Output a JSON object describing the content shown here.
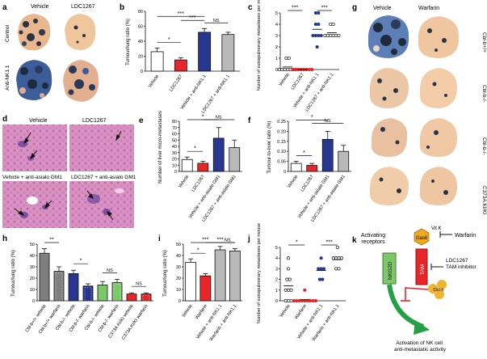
{
  "panels": {
    "a": {
      "letter": "a",
      "col_vehicle": "Vehicle",
      "col_ldc": "LDC1267",
      "row_control": "Control",
      "row_antink": "Anti-NK1.1"
    },
    "b": {
      "letter": "b",
      "ylabel": "Tumour/lung ratio (%)",
      "yticks": [
        "0",
        "20",
        "40",
        "60",
        "80"
      ],
      "xlabels": [
        "Vehicle",
        "LDC1267",
        "Vehicle + anti-NK1.1",
        "LDC1267 + anti-NK1.1"
      ],
      "sig": [
        "*",
        "***",
        "***",
        "NS"
      ]
    },
    "c": {
      "letter": "c",
      "ylabel": "Number of extrapulmonary metastases per mouse",
      "yticks": [
        "0",
        "1",
        "2",
        "3",
        "4",
        "5"
      ],
      "xlabels": [
        "Vehicle",
        "LDC1267",
        "Vehicle + anti-NK1.1",
        "LDC1267 + anti-NK1.1"
      ],
      "sig": [
        "***",
        "***"
      ]
    },
    "d": {
      "letter": "d",
      "labels": [
        "Vehicle",
        "LDC1267",
        "Vehicle + anti-asialo GM1",
        "LDC1267 + anti-asialo GM1"
      ]
    },
    "e": {
      "letter": "e",
      "ylabel": "Number of liver micro-metastases",
      "yticks": [
        "0",
        "10",
        "20",
        "30",
        "40",
        "50",
        "60",
        "70",
        "80"
      ],
      "xlabels": [
        "Vehicle",
        "LDC1267",
        "Vehicle + anti-asialo GM1",
        "LDC1267 + anti-asialo GM1"
      ],
      "sig": [
        "*",
        "*",
        "NS"
      ]
    },
    "f": {
      "letter": "f",
      "ylabel": "Tumour-to-liver ratio (%)",
      "yticks": [
        "0",
        "0.05",
        "0.10",
        "0.15",
        "0.20",
        "0.25"
      ],
      "xlabels": [
        "Vehicle",
        "LDC1267",
        "Vehicle + anti-asialo GM1",
        "LDC1267 + anti-asialo GM1"
      ],
      "sig": [
        "*",
        "*",
        "NS"
      ]
    },
    "g": {
      "letter": "g",
      "col_vehicle": "Vehicle",
      "col_warfarin": "Warfarin",
      "rows": [
        "Cbl-b+/+",
        "Cbl-b-/-",
        "Cbl-b-/-",
        "C373A KI/KI"
      ]
    },
    "h": {
      "letter": "h",
      "ylabel": "Tumour/lung ratio (%)",
      "yticks": [
        "0",
        "10",
        "20",
        "30",
        "40",
        "50"
      ],
      "xlabels": [
        "Cbl-b+/+ vehicle",
        "Cbl-b+/+ warfarin",
        "Cbl-b-/- vehicle",
        "Cbl-b-/- warfarin",
        "Cbl-b-/- vehicle",
        "Cbl-b-/- warfarin",
        "C373A KI/KI vehicle",
        "C373A KI/KI warfarin"
      ],
      "sig": [
        "**",
        "*",
        "NS",
        "NS"
      ]
    },
    "i": {
      "letter": "i",
      "ylabel": "Tumour/lung ratio (%)",
      "yticks": [
        "0",
        "10",
        "20",
        "30",
        "40",
        "50"
      ],
      "xlabels": [
        "Vehicle",
        "Warfarin",
        "Vehicle + anti-NK1.1",
        "Warfarin + anti-NK1.1"
      ],
      "sig": [
        "***",
        "***",
        "*",
        "NS"
      ]
    },
    "j": {
      "letter": "j",
      "ylabel": "Number of extrapulmonary metastases per mouse",
      "yticks": [
        "0",
        "1",
        "2",
        "3",
        "4",
        "5"
      ],
      "xlabels": [
        "Vehicle",
        "Warfarin",
        "Vehicle + anti-NK1.1",
        "Warfarin + anti-NK1.1"
      ],
      "sig": [
        "*",
        "***"
      ]
    },
    "k": {
      "letter": "k",
      "activating": "Activating receptors",
      "nkg2d": "NKG2D",
      "tam": "TAM",
      "gas6": "Gas6",
      "vitk": "Vit K",
      "warfarin": "Warfarin",
      "ldc": "LDC1267 TAM inhibitor",
      "cblb": "Cbl-b",
      "activation": "Activation of NK cell anti-metastatic activity"
    }
  },
  "colors": {
    "white": "#ffffff",
    "red": "#e8262a",
    "blue": "#27378f",
    "grey": "#b9b9b9",
    "darkgrey": "#7f7f7f",
    "green": "#79c86a",
    "orange": "#f0a81f"
  },
  "chart_data": [
    {
      "type": "bar",
      "panel": "b",
      "categories": [
        "Vehicle",
        "LDC1267",
        "Vehicle + anti-NK1.1",
        "LDC1267 + anti-NK1.1"
      ],
      "values": [
        26,
        15,
        52,
        49
      ],
      "errors": [
        5,
        3,
        5,
        3
      ],
      "ylim": [
        0,
        80
      ],
      "ylabel": "Tumour/lung ratio (%)"
    },
    {
      "type": "scatter",
      "panel": "c",
      "categories": [
        "Vehicle",
        "LDC1267",
        "Vehicle + anti-NK1.1",
        "LDC1267 + anti-NK1.1"
      ],
      "points": [
        [
          1,
          1,
          0,
          0,
          0,
          0,
          0,
          0,
          0
        ],
        [
          0,
          0,
          0,
          0,
          0,
          0,
          0,
          0
        ],
        [
          5,
          5,
          4,
          4,
          3,
          3,
          3,
          3,
          2
        ],
        [
          4,
          4,
          3,
          3,
          3,
          3,
          3,
          3
        ]
      ],
      "ylim": [
        0,
        5
      ],
      "ylabel": "Number of extrapulmonary metastases per mouse"
    },
    {
      "type": "bar",
      "panel": "e",
      "categories": [
        "Vehicle",
        "LDC1267",
        "Vehicle + anti-asialo GM1",
        "LDC1267 + anti-asialo GM1"
      ],
      "values": [
        19,
        13,
        53,
        38
      ],
      "errors": [
        4,
        3,
        17,
        12
      ],
      "ylim": [
        0,
        80
      ],
      "ylabel": "Number of liver micro-metastases"
    },
    {
      "type": "bar",
      "panel": "f",
      "categories": [
        "Vehicle",
        "LDC1267",
        "Vehicle + anti-asialo GM1",
        "LDC1267 + anti-asialo GM1"
      ],
      "values": [
        0.04,
        0.03,
        0.16,
        0.1
      ],
      "errors": [
        0.01,
        0.01,
        0.04,
        0.03
      ],
      "ylim": [
        0,
        0.25
      ],
      "ylabel": "Tumour-to-liver ratio (%)"
    },
    {
      "type": "bar",
      "panel": "h",
      "categories": [
        "Cbl-b+/+ vehicle",
        "Cbl-b+/+ warfarin",
        "Cbl-b-/- vehicle",
        "Cbl-b-/- warfarin",
        "Cbl-b-/- vehicle",
        "Cbl-b-/- warfarin",
        "C373A KI/KI vehicle",
        "C373A KI/KI warfarin"
      ],
      "values": [
        42,
        26,
        24,
        13,
        14,
        16,
        6,
        6
      ],
      "errors": [
        4,
        4,
        3,
        2,
        3,
        3,
        1,
        1
      ],
      "ylim": [
        0,
        50
      ],
      "ylabel": "Tumour/lung ratio (%)"
    },
    {
      "type": "bar",
      "panel": "i",
      "categories": [
        "Vehicle",
        "Warfarin",
        "Vehicle + anti-NK1.1",
        "Warfarin + anti-NK1.1"
      ],
      "values": [
        34,
        22,
        45,
        44
      ],
      "errors": [
        3,
        2,
        3,
        2
      ],
      "ylim": [
        0,
        50
      ],
      "ylabel": "Tumour/lung ratio (%)"
    },
    {
      "type": "scatter",
      "panel": "j",
      "categories": [
        "Vehicle",
        "Warfarin",
        "Vehicle + anti-NK1.1",
        "Warfarin + anti-NK1.1"
      ],
      "points": [
        [
          4,
          3,
          2,
          2,
          1,
          1,
          1,
          0,
          0,
          0
        ],
        [
          1,
          0,
          0,
          0,
          0,
          0,
          0,
          0,
          0,
          0
        ],
        [
          4,
          3,
          3,
          3,
          2,
          2
        ],
        [
          5,
          4,
          4,
          4,
          4,
          3,
          3
        ]
      ],
      "ylim": [
        0,
        5
      ],
      "ylabel": "Number of extrapulmonary metastases per mouse"
    }
  ]
}
